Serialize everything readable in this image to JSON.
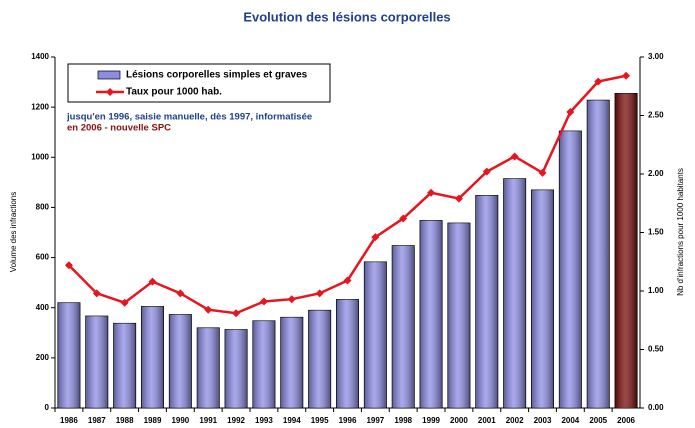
{
  "chart_data": {
    "type": "bar_line",
    "title": "Evolution des lésions corporelles",
    "y_label": "Volume des infractions",
    "y2_label": "Nb d'infractions pour 1000 habitants",
    "annotations": [
      {
        "text": "jusqu'en 1996, saisie manuelle, dès 1997, informatisée",
        "color": "#1f3f8f"
      },
      {
        "text": "en 2006 - nouvelle SPC",
        "color": "#8b1010"
      }
    ],
    "categories": [
      "1986",
      "1987",
      "1988",
      "1989",
      "1990",
      "1991",
      "1992",
      "1993",
      "1994",
      "1995",
      "1996",
      "1997",
      "1998",
      "1999",
      "2000",
      "2001",
      "2002",
      "2003",
      "2004",
      "2005",
      "2006"
    ],
    "series": [
      {
        "name": "Lésions corporelles simples et graves",
        "kind": "bar",
        "color": "#8c8ce6",
        "colors": [
          "#8c8ce6",
          "#8c8ce6",
          "#8c8ce6",
          "#8c8ce6",
          "#8c8ce6",
          "#8c8ce6",
          "#8c8ce6",
          "#8c8ce6",
          "#8c8ce6",
          "#8c8ce6",
          "#8c8ce6",
          "#8c8ce6",
          "#8c8ce6",
          "#8c8ce6",
          "#8c8ce6",
          "#8c8ce6",
          "#8c8ce6",
          "#8c8ce6",
          "#8c8ce6",
          "#8c8ce6",
          "#7a0a0a"
        ],
        "values": [
          420,
          367,
          338,
          405,
          373,
          320,
          313,
          348,
          362,
          390,
          433,
          583,
          648,
          748,
          738,
          848,
          915,
          870,
          1105,
          1228,
          1255
        ]
      },
      {
        "name": "Taux pour 1000 hab.",
        "kind": "line",
        "axis": "y2",
        "color": "#e8141e",
        "values": [
          1.22,
          0.98,
          0.9,
          1.08,
          0.98,
          0.84,
          0.81,
          0.91,
          0.93,
          0.98,
          1.09,
          1.46,
          1.62,
          1.84,
          1.79,
          2.02,
          2.15,
          2.01,
          2.53,
          2.79,
          2.84
        ]
      }
    ],
    "ylim": [
      0,
      1400
    ],
    "yticks": [
      0,
      200,
      400,
      600,
      800,
      1000,
      1200,
      1400
    ],
    "y2lim": [
      0,
      3
    ],
    "y2ticks": [
      {
        "value": 0,
        "label": "0.00"
      },
      {
        "value": 0.5,
        "label": "0.50"
      },
      {
        "value": 1,
        "label": "1.00"
      },
      {
        "value": 1.5,
        "label": "1.50"
      },
      {
        "value": 2,
        "label": "2.00"
      },
      {
        "value": 2.5,
        "label": "2.50"
      },
      {
        "value": 3,
        "label": "3.00"
      }
    ],
    "grid": false,
    "legend": "top-left"
  }
}
